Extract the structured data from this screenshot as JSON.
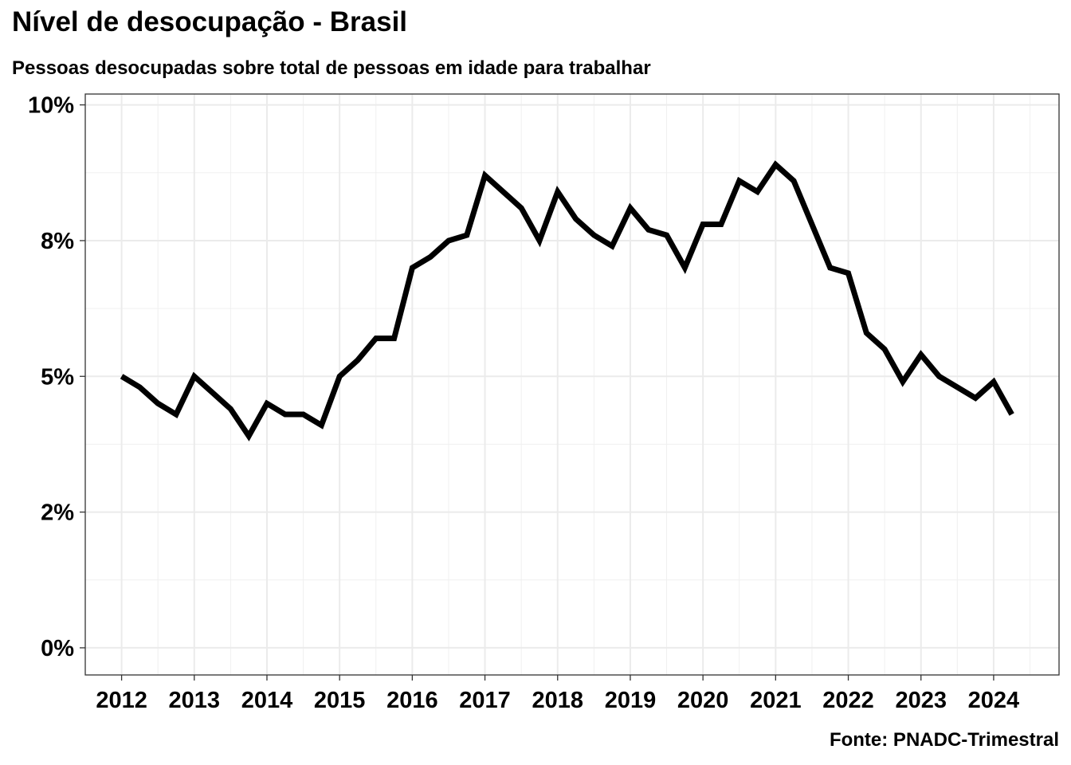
{
  "title": "Nível de desocupação - Brasil",
  "subtitle": "Pessoas desocupadas sobre total de pessoas em idade para trabalhar",
  "caption": "Fonte: PNADC-Trimestral",
  "chart_data": {
    "type": "line",
    "title": "Nível de desocupação - Brasil",
    "subtitle": "Pessoas desocupadas sobre total de pessoas em idade para trabalhar",
    "xlabel": "",
    "ylabel": "",
    "grid": true,
    "line_color": "#000000",
    "xlim": [
      2011.5,
      2024.9
    ],
    "ylim": [
      -0.5,
      10.2
    ],
    "x_ticks": [
      2012,
      2013,
      2014,
      2015,
      2016,
      2017,
      2018,
      2019,
      2020,
      2021,
      2022,
      2023,
      2024
    ],
    "x_tick_labels": [
      "2012",
      "2013",
      "2014",
      "2015",
      "2016",
      "2017",
      "2018",
      "2019",
      "2020",
      "2021",
      "2022",
      "2023",
      "2024"
    ],
    "y_ticks": [
      0,
      2.5,
      5,
      7.5,
      10
    ],
    "y_tick_labels": [
      "0%",
      "2%",
      "5%",
      "8%",
      "10%"
    ],
    "series": [
      {
        "x": [
          2012.0,
          2012.25,
          2012.5,
          2012.75,
          2013.0,
          2013.25,
          2013.5,
          2013.75,
          2014.0,
          2014.25,
          2014.5,
          2014.75,
          2015.0,
          2015.25,
          2015.5,
          2015.75,
          2016.0,
          2016.25,
          2016.5,
          2016.75,
          2017.0,
          2017.25,
          2017.5,
          2017.75,
          2018.0,
          2018.25,
          2018.5,
          2018.75,
          2019.0,
          2019.25,
          2019.5,
          2019.75,
          2020.0,
          2020.25,
          2020.5,
          2020.75,
          2021.0,
          2021.25,
          2021.5,
          2021.75,
          2022.0,
          2022.25,
          2022.5,
          2022.75,
          2023.0,
          2023.25,
          2023.5,
          2023.75,
          2024.0,
          2024.25
        ],
        "values": [
          5.0,
          4.8,
          4.5,
          4.3,
          5.0,
          4.7,
          4.4,
          3.9,
          4.5,
          4.3,
          4.3,
          4.1,
          5.0,
          5.3,
          5.7,
          5.7,
          7.0,
          7.2,
          7.5,
          7.6,
          8.7,
          8.4,
          8.1,
          7.5,
          8.4,
          7.9,
          7.6,
          7.4,
          8.1,
          7.7,
          7.6,
          7.0,
          7.8,
          7.8,
          8.6,
          8.4,
          8.9,
          8.6,
          7.8,
          7.0,
          6.9,
          5.8,
          5.5,
          4.9,
          5.4,
          5.0,
          4.8,
          4.6,
          4.9,
          4.3
        ]
      }
    ]
  }
}
